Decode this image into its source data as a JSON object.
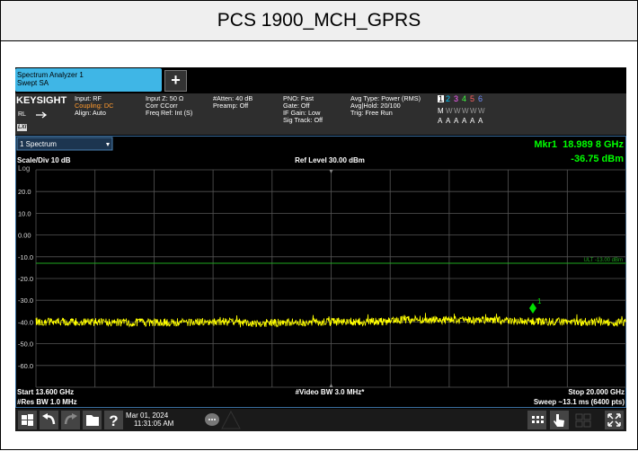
{
  "title": "PCS 1900_MCH_GPRS",
  "tab": {
    "name": "Spectrum Analyzer 1",
    "mode": "Swept SA",
    "add_tab": "+"
  },
  "info": {
    "brand": "KEYSIGHT",
    "rl": "RL",
    "lxi": "LXI",
    "columns": [
      [
        "Input: RF",
        "Coupling: DC",
        "Align: Auto"
      ],
      [
        "Input Z: 50 Ω",
        "Corr CCorr",
        "Freq Ref: Int (S)"
      ],
      [
        "#Atten: 40 dB",
        "Preamp: Off"
      ],
      [
        "PNO: Fast",
        "Gate: Off",
        "IF Gain: Low",
        "Sig Track: Off"
      ],
      [
        "Avg Type: Power (RMS)",
        "Avg|Hold: 20/100",
        "Trig: Free Run"
      ]
    ],
    "traces": {
      "numbers": [
        "1",
        "2",
        "3",
        "4",
        "5",
        "6"
      ],
      "types": [
        "M",
        "W",
        "W",
        "W",
        "W",
        "W"
      ],
      "detectors": [
        "A",
        "A",
        "A",
        "A",
        "A",
        "A"
      ]
    }
  },
  "plot": {
    "window": "1 Spectrum",
    "marker": "Mkr1  18.989 8 GHz",
    "marker_value": "-36.75 dBm",
    "scale": "Scale/Div 10 dB",
    "ref_level": "Ref Level 30.00 dBm",
    "log": "Log",
    "y_labels": [
      "20.0",
      "10.0",
      "0.00",
      "-10.0",
      "-20.0",
      "-30.0",
      "-40.0",
      "-50.0",
      "-60.0"
    ],
    "limit_label": "ULT -13.00 dBm",
    "marker_id": "1",
    "start": "Start 13.600 GHz",
    "res_bw": "#Res BW 1.0 MHz",
    "video_bw": "#Video BW 3.0 MHz*",
    "stop": "Stop 20.000 GHz",
    "sweep": "Sweep ~13.1 ms (6400 pts)"
  },
  "taskbar": {
    "help": "?",
    "date": "Mar 01, 2024",
    "time": "11:31:05 AM"
  }
}
